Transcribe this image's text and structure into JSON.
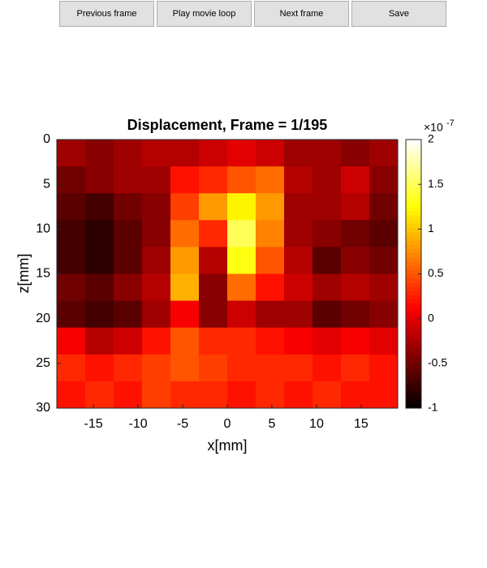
{
  "buttons": [
    "Previous frame",
    "Play movie loop",
    "Next frame",
    "Save"
  ],
  "chart_data": {
    "type": "heatmap",
    "title": "Displacement, Frame = 1/195",
    "xlabel": "x[mm]",
    "ylabel": "z[mm]",
    "colormap": "hot",
    "xlim": [
      -19.1,
      19.1
    ],
    "ylim": [
      30,
      0
    ],
    "xticks": [
      -15,
      -10,
      -5,
      0,
      5,
      10,
      15
    ],
    "yticks": [
      0,
      5,
      10,
      15,
      20,
      25,
      30
    ],
    "values": [
      [
        -0.3,
        -0.4,
        -0.3,
        -0.2,
        -0.2,
        -0.1,
        0,
        -0.1,
        -0.3,
        -0.3,
        -0.4,
        -0.3
      ],
      [
        -0.5,
        -0.4,
        -0.3,
        -0.3,
        0.2,
        0.3,
        0.5,
        0.6,
        -0.2,
        -0.3,
        -0.1,
        -0.4
      ],
      [
        -0.6,
        -0.7,
        -0.5,
        -0.4,
        0.4,
        0.8,
        1.2,
        0.8,
        -0.3,
        -0.3,
        -0.2,
        -0.5
      ],
      [
        -0.7,
        -0.8,
        -0.6,
        -0.4,
        0.6,
        0.3,
        1.5,
        0.7,
        -0.3,
        -0.4,
        -0.5,
        -0.6
      ],
      [
        -0.7,
        -0.8,
        -0.6,
        -0.3,
        0.8,
        -0.2,
        1.3,
        0.5,
        -0.2,
        -0.6,
        -0.4,
        -0.5
      ],
      [
        -0.5,
        -0.6,
        -0.4,
        -0.2,
        0.9,
        -0.4,
        0.6,
        0.2,
        -0.1,
        -0.3,
        -0.2,
        -0.3
      ],
      [
        -0.6,
        -0.7,
        -0.6,
        -0.3,
        0.1,
        -0.4,
        -0.1,
        -0.3,
        -0.3,
        -0.6,
        -0.5,
        -0.4
      ],
      [
        0.1,
        -0.2,
        -0.1,
        0.2,
        0.5,
        0.3,
        0.3,
        0.2,
        0.1,
        0,
        0.1,
        0
      ],
      [
        0.3,
        0.2,
        0.3,
        0.4,
        0.5,
        0.4,
        0.3,
        0.3,
        0.3,
        0.2,
        0.3,
        0.2
      ],
      [
        0.2,
        0.3,
        0.2,
        0.4,
        0.3,
        0.3,
        0.2,
        0.3,
        0.2,
        0.3,
        0.2,
        0.2
      ]
    ],
    "colorbar": {
      "clim": [
        -1,
        2
      ],
      "ticks": [
        -1,
        -0.5,
        0,
        0.5,
        1,
        1.5,
        2
      ],
      "multiplier": "×10",
      "exponent": "-7"
    }
  }
}
